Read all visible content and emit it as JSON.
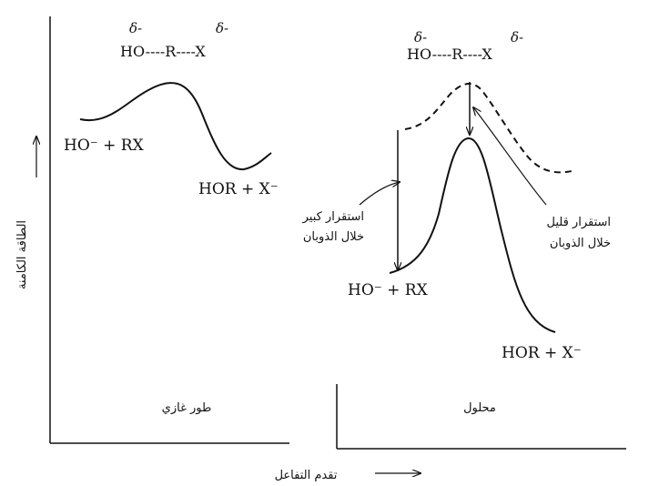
{
  "axes": {
    "y_label": "الطاقة الكامنة",
    "x_label": "تقدم التفاعل"
  },
  "panels": {
    "gas": {
      "label": "طور غازي",
      "structure": {
        "delta_left": "δ-",
        "delta_right": "δ-",
        "formula": "HO----R----X"
      },
      "reactants": "HO⁻ + RX",
      "products": "HOR + X⁻"
    },
    "solution": {
      "label": "محلول",
      "structure": {
        "delta_left": "δ-",
        "delta_right": "δ-",
        "formula": "HO----R----X"
      },
      "reactants": "HO⁻ + RX",
      "products": "HOR + X⁻",
      "note_large": {
        "line1": "استقرار كبير",
        "line2": "خلال الذوبان"
      },
      "note_small": {
        "line1": "استقرار قليل",
        "line2": "خلال الذوبان"
      }
    }
  }
}
